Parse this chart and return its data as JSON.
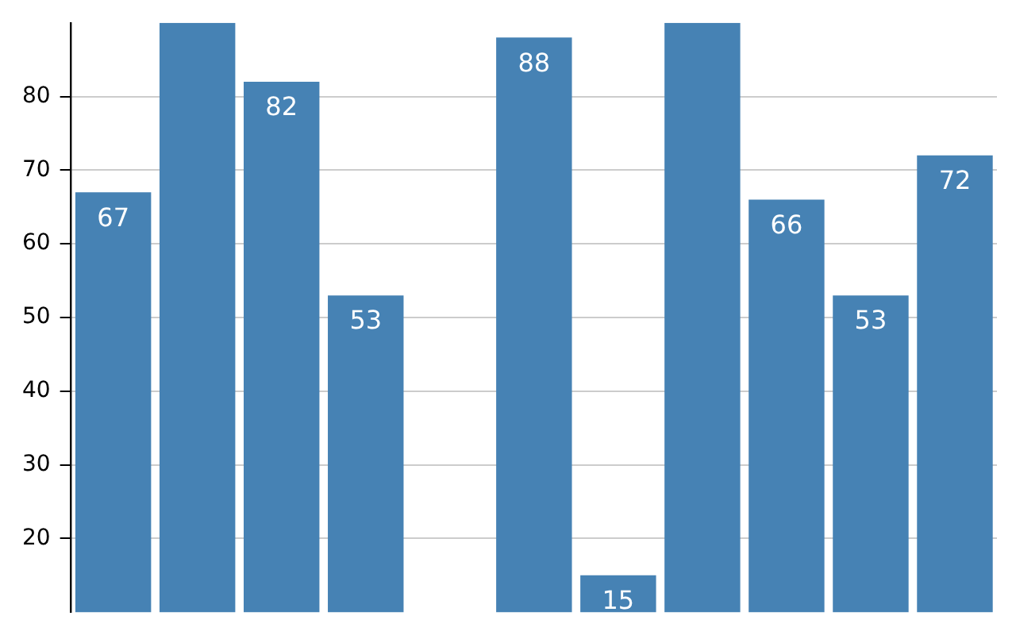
{
  "chart_data": {
    "type": "bar",
    "categories": [
      null,
      null,
      null,
      null,
      null,
      null,
      null,
      null,
      null,
      null,
      null
    ],
    "values": [
      67,
      90,
      82,
      53,
      null,
      88,
      15,
      90,
      66,
      53,
      72
    ],
    "value_labels": [
      "67",
      null,
      "82",
      "53",
      null,
      "88",
      "15",
      null,
      "66",
      "53",
      "72"
    ],
    "color": "#4682b4",
    "ylim": [
      10,
      90
    ],
    "yticks": [
      20,
      30,
      40,
      50,
      60,
      70,
      80
    ],
    "grid": "y",
    "tick_labels": "y",
    "legend": false
  }
}
